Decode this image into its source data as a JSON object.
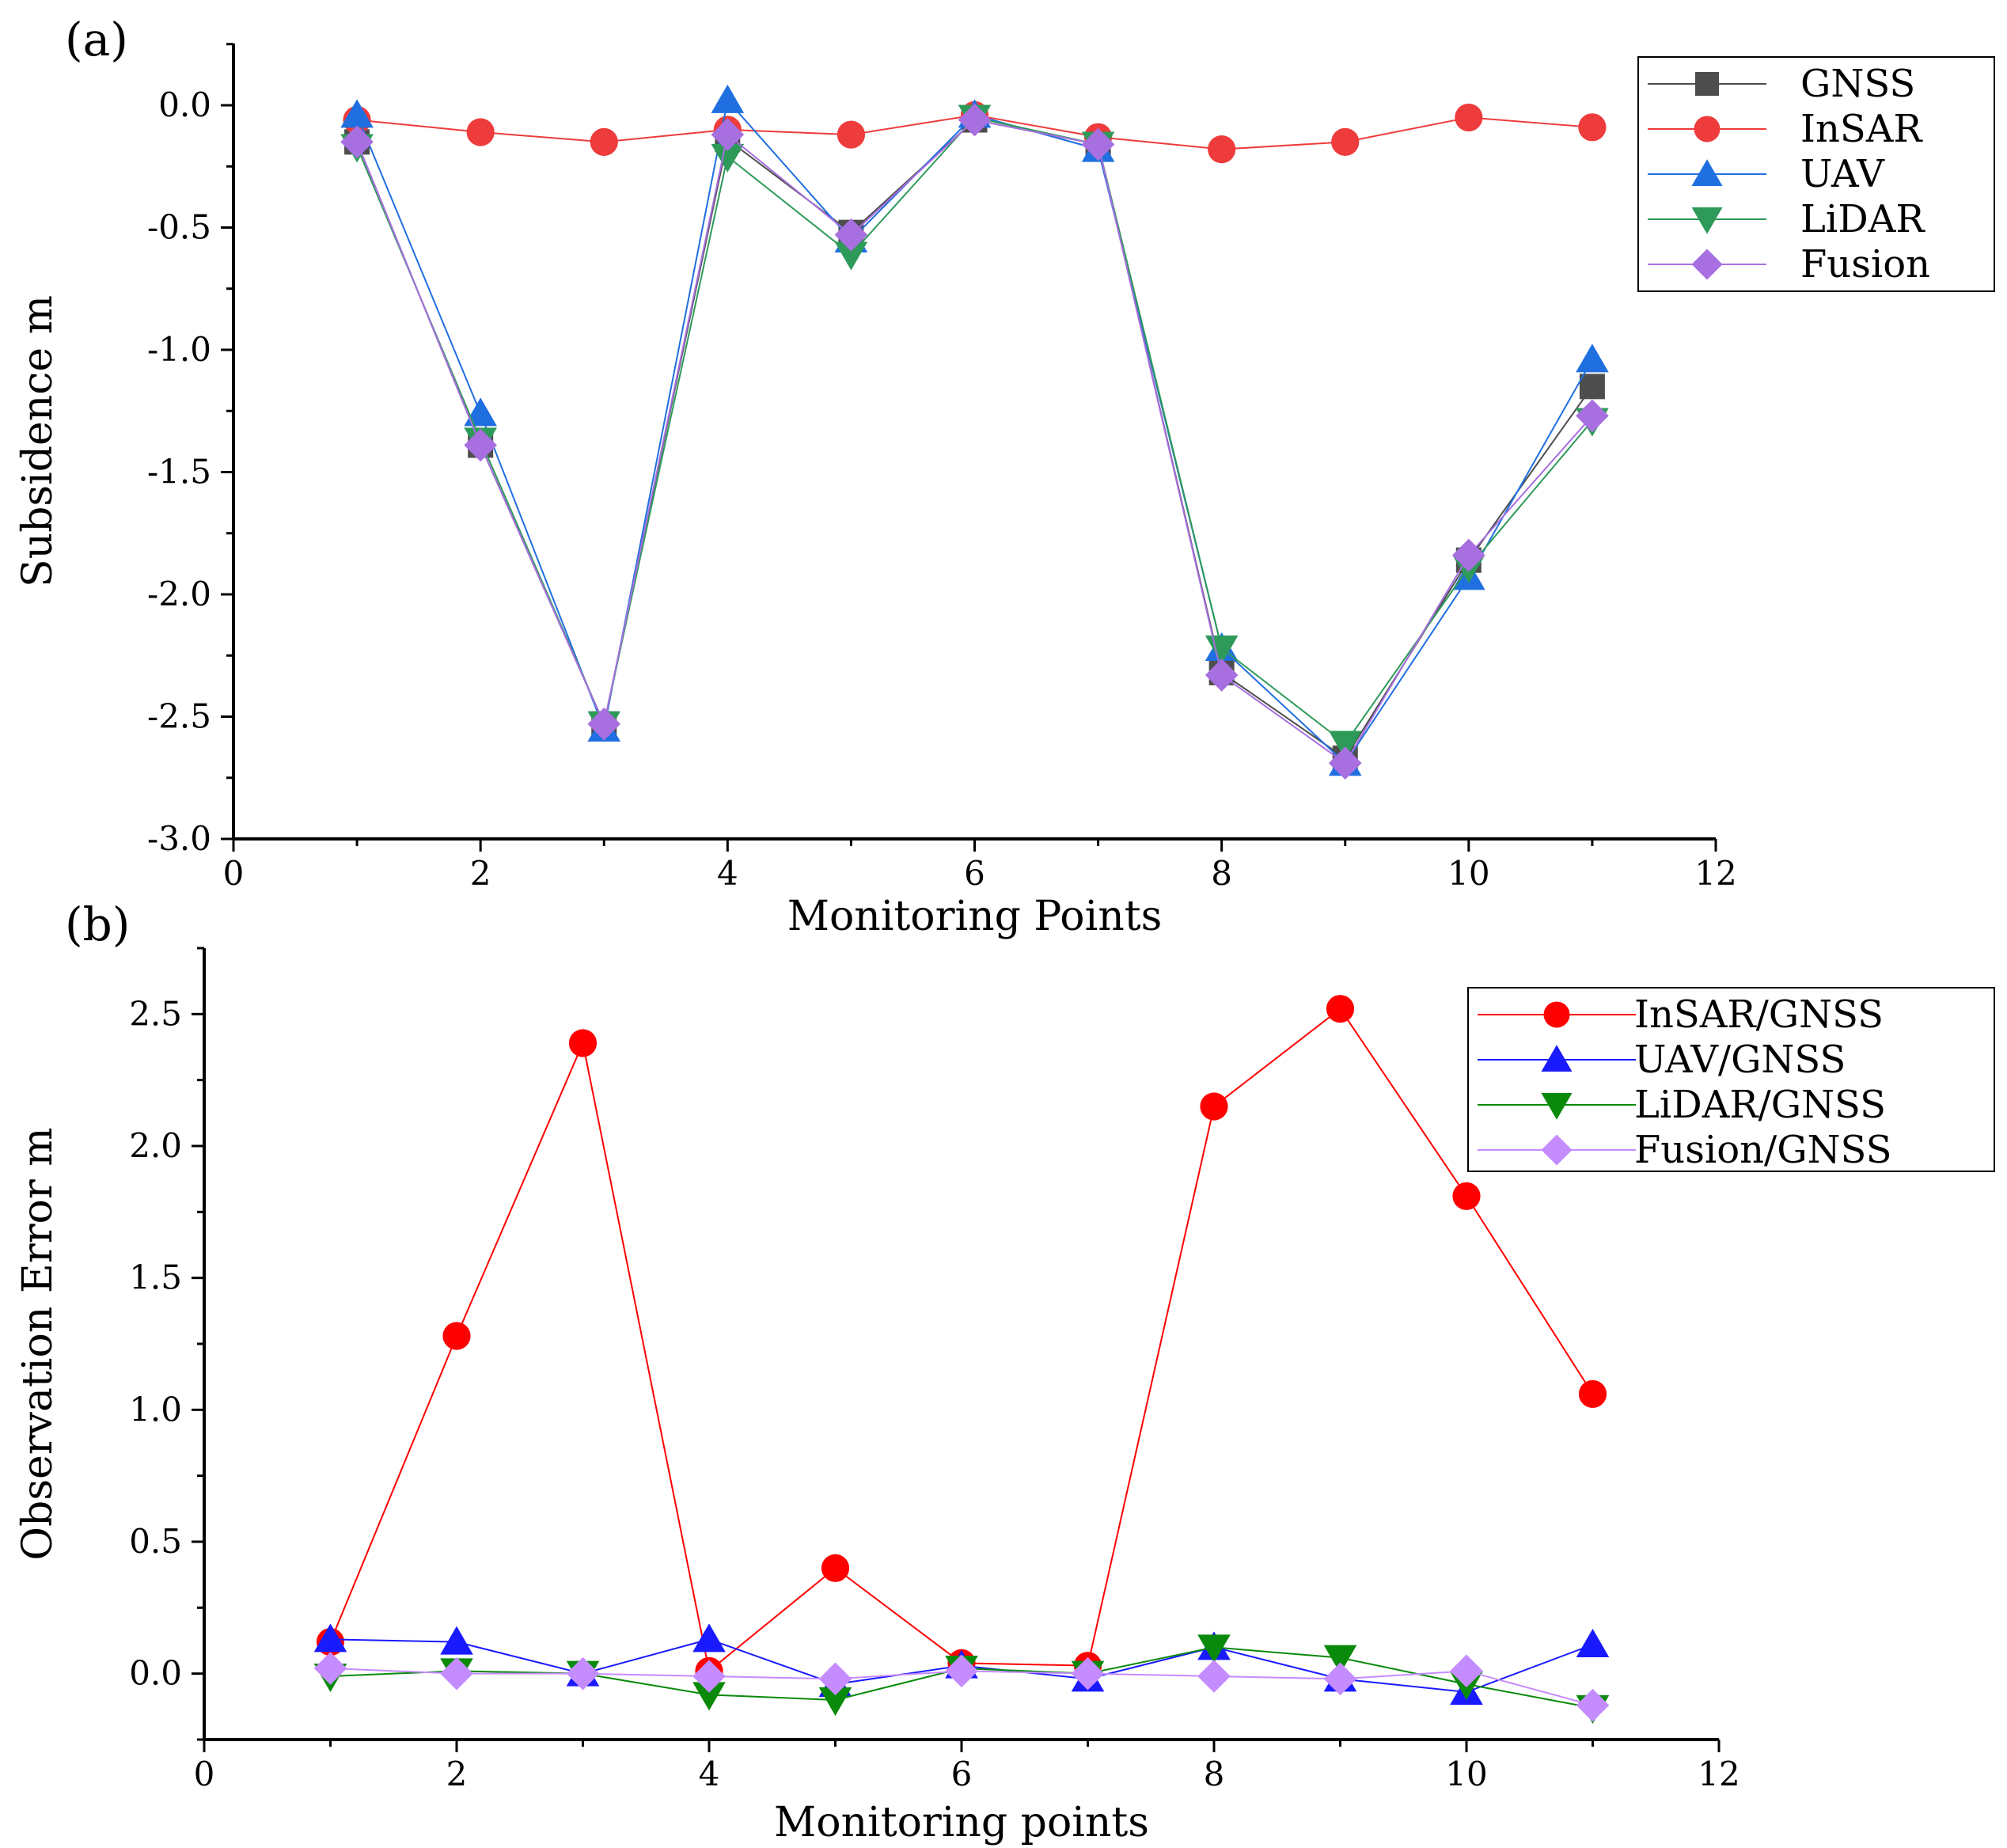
{
  "figure": {
    "colors": {
      "GNSS": "#4d4d4d",
      "InSAR": "#ee3b3b",
      "UAV": "#1f6fe0",
      "LiDAR": "#2e9a5a",
      "Fusion": "#a76fe0",
      "InSAR/GNSS": "#ff0000",
      "UAV/GNSS": "#1a1aff",
      "LiDAR/GNSS": "#0a8a0a",
      "Fusion/GNSS": "#c58cff"
    }
  },
  "chart_data": [
    {
      "id": "a",
      "panel_label": "(a)",
      "type": "line",
      "xlabel": "Monitoring Points",
      "ylabel": "Subsidence m",
      "xlim": [
        0,
        12
      ],
      "ylim": [
        -3.0,
        0.25
      ],
      "xticks": [
        0,
        2,
        4,
        6,
        8,
        10,
        12
      ],
      "xtick_labels": [
        "0",
        "2",
        "4",
        "6",
        "8",
        "10",
        "12"
      ],
      "yticks": [
        0.0,
        -0.5,
        -1.0,
        -1.5,
        -2.0,
        -2.5,
        -3.0
      ],
      "ytick_labels": [
        "0.0",
        "-0.5",
        "-1.0",
        "-1.5",
        "-2.0",
        "-2.5",
        "-3.0"
      ],
      "legend_position": "top-right",
      "x": [
        1,
        2,
        3,
        4,
        5,
        6,
        7,
        8,
        9,
        10,
        11
      ],
      "series": [
        {
          "name": "GNSS",
          "marker": "square",
          "values": [
            -0.15,
            -1.39,
            -2.53,
            -0.14,
            -0.52,
            -0.06,
            -0.16,
            -2.32,
            -2.67,
            -1.86,
            -1.15
          ]
        },
        {
          "name": "InSAR",
          "marker": "circle",
          "values": [
            -0.06,
            -0.11,
            -0.15,
            -0.1,
            -0.12,
            -0.04,
            -0.13,
            -0.18,
            -0.15,
            -0.05,
            -0.09
          ]
        },
        {
          "name": "UAV",
          "marker": "triangle-up",
          "values": [
            -0.04,
            -1.26,
            -2.55,
            0.02,
            -0.55,
            -0.04,
            -0.18,
            -2.22,
            -2.69,
            -1.93,
            -1.04
          ]
        },
        {
          "name": "LiDAR",
          "marker": "triangle-down",
          "values": [
            -0.17,
            -1.37,
            -2.53,
            -0.21,
            -0.61,
            -0.05,
            -0.16,
            -2.22,
            -2.61,
            -1.89,
            -1.29
          ]
        },
        {
          "name": "Fusion",
          "marker": "diamond",
          "values": [
            -0.15,
            -1.39,
            -2.53,
            -0.12,
            -0.53,
            -0.06,
            -0.16,
            -2.33,
            -2.69,
            -1.84,
            -1.27
          ]
        }
      ]
    },
    {
      "id": "b",
      "panel_label": "(b)",
      "type": "line",
      "xlabel": "Monitoring points",
      "ylabel": "Observation Error m",
      "xlim": [
        0,
        12
      ],
      "ylim": [
        -0.25,
        2.75
      ],
      "xticks": [
        0,
        2,
        4,
        6,
        8,
        10,
        12
      ],
      "xtick_labels": [
        "0",
        "2",
        "4",
        "6",
        "8",
        "10",
        "12"
      ],
      "yticks": [
        0.0,
        0.5,
        1.0,
        1.5,
        2.0,
        2.5
      ],
      "ytick_labels": [
        "0.0",
        "0.5",
        "1.0",
        "1.5",
        "2.0",
        "2.5"
      ],
      "legend_position": "top-right",
      "x": [
        1,
        2,
        3,
        4,
        5,
        6,
        7,
        8,
        9,
        10,
        11
      ],
      "series": [
        {
          "name": "InSAR/GNSS",
          "marker": "circle",
          "values": [
            0.12,
            1.28,
            2.39,
            0.01,
            0.4,
            0.04,
            0.03,
            2.15,
            2.52,
            1.81,
            1.06
          ]
        },
        {
          "name": "UAV/GNSS",
          "marker": "triangle-up",
          "values": [
            0.13,
            0.12,
            0.0,
            0.13,
            -0.04,
            0.03,
            -0.02,
            0.1,
            -0.02,
            -0.07,
            0.11
          ]
        },
        {
          "name": "LiDAR/GNSS",
          "marker": "triangle-down",
          "values": [
            -0.01,
            0.01,
            0.0,
            -0.08,
            -0.1,
            0.02,
            0.0,
            0.1,
            0.06,
            -0.04,
            -0.13
          ]
        },
        {
          "name": "Fusion/GNSS",
          "marker": "diamond",
          "values": [
            0.02,
            0.0,
            0.0,
            -0.01,
            -0.02,
            0.01,
            0.0,
            -0.01,
            -0.02,
            0.01,
            -0.12
          ]
        }
      ]
    }
  ]
}
